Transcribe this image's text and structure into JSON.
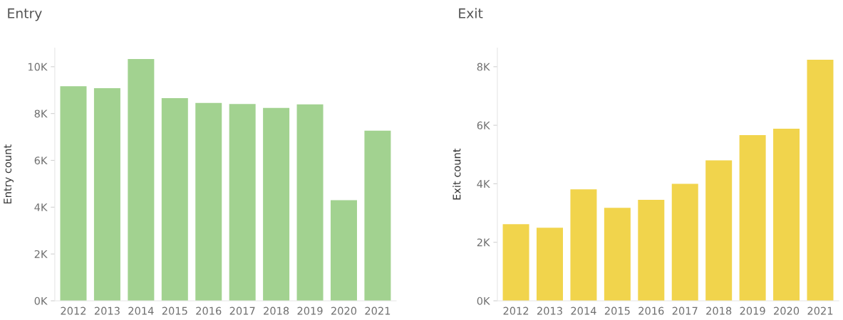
{
  "chart_data": [
    {
      "type": "bar",
      "title": "Entry",
      "ylabel": "Entry count",
      "categories": [
        "2012",
        "2013",
        "2014",
        "2015",
        "2016",
        "2017",
        "2018",
        "2019",
        "2020",
        "2021"
      ],
      "values": [
        9170,
        9080,
        10330,
        8660,
        8450,
        8410,
        8240,
        8390,
        4300,
        7270
      ],
      "color": "#a2d290",
      "ylim": [
        0,
        10800
      ],
      "yticks": [
        {
          "value": 0,
          "label": "0K"
        },
        {
          "value": 2000,
          "label": "2K"
        },
        {
          "value": 4000,
          "label": "4K"
        },
        {
          "value": 6000,
          "label": "6K"
        },
        {
          "value": 8000,
          "label": "8K"
        },
        {
          "value": 10000,
          "label": "10K"
        }
      ],
      "grid": false
    },
    {
      "type": "bar",
      "title": "Exit",
      "ylabel": "Exit count",
      "categories": [
        "2012",
        "2013",
        "2014",
        "2015",
        "2016",
        "2017",
        "2018",
        "2019",
        "2020",
        "2021"
      ],
      "values": [
        2620,
        2500,
        3810,
        3180,
        3450,
        4000,
        4800,
        5660,
        5880,
        8240
      ],
      "color": "#f1d44c",
      "ylim": [
        0,
        8640
      ],
      "yticks": [
        {
          "value": 0,
          "label": "0K"
        },
        {
          "value": 2000,
          "label": "2K"
        },
        {
          "value": 4000,
          "label": "4K"
        },
        {
          "value": 6000,
          "label": "6K"
        },
        {
          "value": 8000,
          "label": "8K"
        }
      ],
      "grid": false
    }
  ]
}
